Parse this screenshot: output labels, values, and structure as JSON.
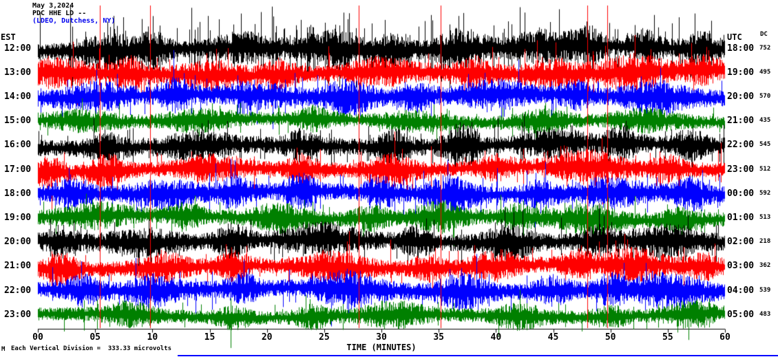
{
  "header": {
    "date": "May 3,2024",
    "station": "PDC HHE LD --",
    "location": "(LDEO, Dutchess, NY)"
  },
  "axis": {
    "left": "EST",
    "right": "UTC",
    "dc": "DC",
    "xlabel": "TIME (MINUTES)",
    "ticks": [
      "00",
      "05",
      "10",
      "15",
      "20",
      "25",
      "30",
      "35",
      "40",
      "45",
      "50",
      "55",
      "60"
    ]
  },
  "footer": {
    "mark": "M",
    "note": "Each Vertical Division =  333.33 microvolts"
  },
  "colors": {
    "black": "#000000",
    "red": "#ff0000",
    "blue": "#0000ff",
    "green": "#008000"
  },
  "chart_data": {
    "type": "line",
    "kind": "helicorder-seismogram",
    "title": "PDC HHE LD seismogram, May 3, 2024",
    "xlabel": "TIME (MINUTES)",
    "x_range": [
      0,
      60
    ],
    "vertical_division_microvolts": 333.33,
    "red_time_marks_min": [
      5.4,
      9.8,
      28.0,
      35.2,
      48.0,
      49.7
    ],
    "rows": [
      {
        "est": "12:00",
        "utc": "18:00",
        "dc": 752,
        "color": "#000000",
        "seed": 101,
        "amp": 10,
        "spikes": 90,
        "spike_amp": 55,
        "bursts": [
          [
            6,
            1.5,
            1.6
          ],
          [
            10,
            1,
            1.4
          ],
          [
            18,
            2,
            1.1
          ],
          [
            26,
            2,
            1.5
          ],
          [
            31,
            1,
            1.2
          ],
          [
            37,
            1.5,
            1.8
          ],
          [
            44,
            2,
            1.2
          ],
          [
            48,
            1,
            1.5
          ],
          [
            53,
            1,
            1.4
          ],
          [
            58,
            1,
            1.2
          ]
        ]
      },
      {
        "est": "13:00",
        "utc": "19:00",
        "dc": 495,
        "color": "#ff0000",
        "seed": 102,
        "amp": 10,
        "spikes": 30,
        "spike_amp": 34,
        "bursts": [
          [
            2,
            2,
            1.0
          ],
          [
            8,
            1,
            1.3
          ],
          [
            15,
            2,
            0.9
          ],
          [
            21,
            1,
            1.1
          ],
          [
            30,
            2,
            1.0
          ],
          [
            38,
            1,
            1.2
          ],
          [
            45,
            2,
            1.0
          ],
          [
            52,
            2,
            1.3
          ],
          [
            58,
            1,
            1.0
          ]
        ]
      },
      {
        "est": "14:00",
        "utc": "20:00",
        "dc": 570,
        "color": "#0000ff",
        "seed": 103,
        "amp": 10,
        "spikes": 28,
        "spike_amp": 34,
        "bursts": [
          [
            5,
            2,
            1.0
          ],
          [
            12,
            1,
            1.2
          ],
          [
            19,
            2,
            0.9
          ],
          [
            27,
            1.5,
            1.4
          ],
          [
            33,
            1,
            1.0
          ],
          [
            40,
            2,
            1.1
          ],
          [
            47,
            1,
            1.0
          ],
          [
            54,
            2,
            1.2
          ]
        ]
      },
      {
        "est": "15:00",
        "utc": "21:00",
        "dc": 435,
        "color": "#008000",
        "seed": 104,
        "amp": 8,
        "spikes": 20,
        "spike_amp": 26,
        "bursts": [
          [
            4,
            2,
            0.9
          ],
          [
            14,
            2,
            1.0
          ],
          [
            24,
            1,
            1.1
          ],
          [
            33,
            2,
            0.9
          ],
          [
            44,
            1.5,
            1.1
          ],
          [
            53,
            2,
            1.0
          ]
        ]
      },
      {
        "est": "16:00",
        "utc": "22:00",
        "dc": 545,
        "color": "#000000",
        "seed": 105,
        "amp": 10,
        "spikes": 34,
        "spike_amp": 40,
        "bursts": [
          [
            6,
            1,
            1.3
          ],
          [
            14,
            2,
            1.0
          ],
          [
            23,
            1,
            1.1
          ],
          [
            31,
            1,
            1.4
          ],
          [
            37,
            1,
            2.0
          ],
          [
            45,
            2,
            1.0
          ],
          [
            51,
            1,
            1.3
          ],
          [
            57,
            1,
            1.1
          ]
        ]
      },
      {
        "est": "17:00",
        "utc": "23:00",
        "dc": 512,
        "color": "#ff0000",
        "seed": 106,
        "amp": 9,
        "spikes": 30,
        "spike_amp": 38,
        "bursts": [
          [
            1,
            1,
            1.3
          ],
          [
            6,
            1,
            1.6
          ],
          [
            15,
            2,
            1.0
          ],
          [
            23,
            1,
            1.1
          ],
          [
            31,
            1.5,
            1.4
          ],
          [
            40,
            1,
            1.0
          ],
          [
            48,
            2,
            1.6
          ],
          [
            55,
            1,
            1.1
          ]
        ]
      },
      {
        "est": "18:00",
        "utc": "00:00",
        "dc": 592,
        "color": "#0000ff",
        "seed": 107,
        "amp": 10,
        "spikes": 28,
        "spike_amp": 36,
        "bursts": [
          [
            3,
            1,
            1.1
          ],
          [
            11,
            2,
            1.0
          ],
          [
            17,
            1,
            1.2
          ],
          [
            23,
            1,
            1.4
          ],
          [
            30,
            1,
            1.1
          ],
          [
            36,
            1.5,
            1.5
          ],
          [
            44,
            1,
            1.0
          ],
          [
            50,
            2,
            1.1
          ],
          [
            57,
            1,
            1.2
          ]
        ]
      },
      {
        "est": "19:00",
        "utc": "01:00",
        "dc": 513,
        "color": "#008000",
        "seed": 108,
        "amp": 9,
        "spikes": 24,
        "spike_amp": 32,
        "bursts": [
          [
            5,
            2,
            1.0
          ],
          [
            13,
            1,
            1.1
          ],
          [
            21,
            1.5,
            1.3
          ],
          [
            29,
            1,
            1.0
          ],
          [
            35,
            1.5,
            1.4
          ],
          [
            42,
            1,
            1.0
          ],
          [
            48,
            2,
            1.3
          ],
          [
            56,
            1,
            1.1
          ]
        ]
      },
      {
        "est": "20:00",
        "utc": "02:00",
        "dc": 218,
        "color": "#000000",
        "seed": 109,
        "amp": 10,
        "spikes": 32,
        "spike_amp": 38,
        "bursts": [
          [
            2,
            1,
            1.1
          ],
          [
            9,
            2,
            1.0
          ],
          [
            17,
            1,
            1.3
          ],
          [
            25,
            2,
            1.2
          ],
          [
            33,
            1,
            1.1
          ],
          [
            41,
            1.5,
            1.3
          ],
          [
            49,
            1,
            1.1
          ],
          [
            55,
            2,
            1.2
          ]
        ]
      },
      {
        "est": "21:00",
        "utc": "03:00",
        "dc": 362,
        "color": "#ff0000",
        "seed": 110,
        "amp": 9,
        "spikes": 26,
        "spike_amp": 34,
        "bursts": [
          [
            2,
            1,
            1.4
          ],
          [
            11,
            1.5,
            1.3
          ],
          [
            17,
            1,
            1.2
          ],
          [
            26,
            2,
            1.4
          ],
          [
            34,
            1,
            1.0
          ],
          [
            40,
            1.5,
            1.3
          ],
          [
            47,
            1,
            1.1
          ],
          [
            52,
            2,
            1.4
          ],
          [
            58,
            1,
            1.1
          ]
        ]
      },
      {
        "est": "22:00",
        "utc": "04:00",
        "dc": 539,
        "color": "#0000ff",
        "seed": 111,
        "amp": 10,
        "spikes": 26,
        "spike_amp": 36,
        "bursts": [
          [
            4,
            1,
            1.1
          ],
          [
            10,
            1.5,
            1.3
          ],
          [
            18,
            1,
            1.0
          ],
          [
            27,
            2,
            1.5
          ],
          [
            37,
            1.5,
            1.4
          ],
          [
            45,
            1,
            1.0
          ],
          [
            50,
            1,
            1.1
          ],
          [
            55,
            2,
            1.4
          ]
        ]
      },
      {
        "est": "23:00",
        "utc": "05:00",
        "dc": 483,
        "color": "#008000",
        "seed": 112,
        "amp": 8,
        "spikes": 18,
        "spike_amp": 26,
        "bursts": [
          [
            8,
            1.5,
            1.2
          ],
          [
            17,
            1,
            1.0
          ],
          [
            24,
            1,
            1.1
          ],
          [
            31,
            2,
            1.3
          ],
          [
            42,
            1.5,
            1.2
          ],
          [
            50,
            1,
            1.0
          ],
          [
            57,
            1.5,
            1.3
          ]
        ]
      }
    ]
  }
}
